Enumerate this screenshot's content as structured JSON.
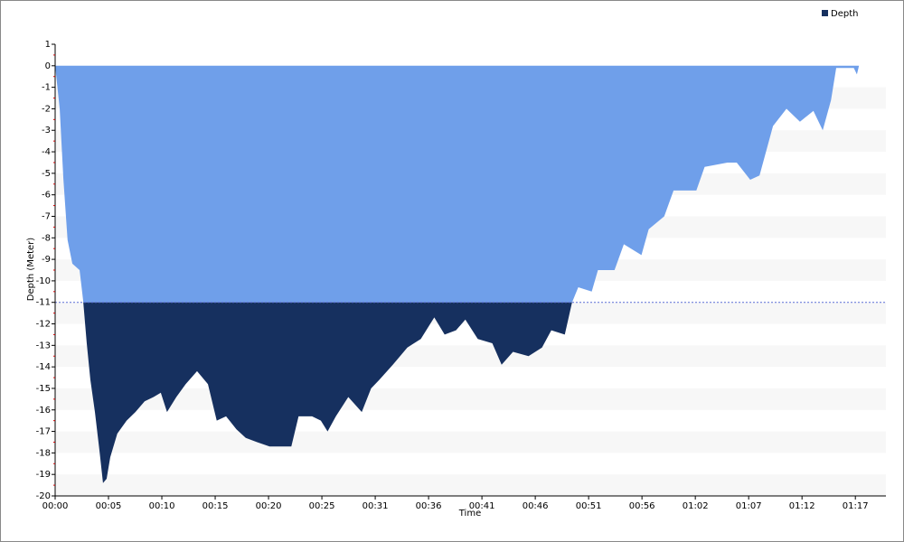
{
  "chart_data": {
    "type": "area",
    "y_label": "Depth (Meter)",
    "x_label": "Time",
    "xlim": [
      0,
      80.2
    ],
    "ylim": [
      -20,
      1
    ],
    "xticks": [
      {
        "value": 0,
        "label": "00:00"
      },
      {
        "value": 5.15,
        "label": "00:05"
      },
      {
        "value": 10.3,
        "label": "00:10"
      },
      {
        "value": 15.45,
        "label": "00:15"
      },
      {
        "value": 20.6,
        "label": "00:20"
      },
      {
        "value": 25.75,
        "label": "00:25"
      },
      {
        "value": 30.9,
        "label": "00:31"
      },
      {
        "value": 36.05,
        "label": "00:36"
      },
      {
        "value": 41.2,
        "label": "00:41"
      },
      {
        "value": 46.35,
        "label": "00:46"
      },
      {
        "value": 51.5,
        "label": "00:51"
      },
      {
        "value": 56.65,
        "label": "00:56"
      },
      {
        "value": 61.8,
        "label": "01:02"
      },
      {
        "value": 66.95,
        "label": "01:07"
      },
      {
        "value": 72.1,
        "label": "01:12"
      },
      {
        "value": 77.25,
        "label": "01:17"
      }
    ],
    "yticks": [
      1,
      0,
      -1,
      -2,
      -3,
      -4,
      -5,
      -6,
      -7,
      -8,
      -9,
      -10,
      -11,
      -12,
      -13,
      -14,
      -15,
      -16,
      -17,
      -18,
      -19,
      -20
    ],
    "threshold": -11,
    "threshold_color": "#5a6fd6",
    "upper_color": "#6f9fea",
    "legend": "top-right",
    "x": [
      0,
      0.44,
      0.8,
      1.2,
      1.66,
      2.36,
      2.7,
      3.05,
      3.4,
      3.84,
      4.28,
      4.62,
      4.97,
      5.32,
      6.0,
      6.9,
      7.75,
      8.64,
      9.5,
      10.2,
      10.8,
      11.7,
      12.6,
      13.7,
      14.75,
      15.6,
      16.5,
      17.5,
      18.4,
      19.5,
      20.7,
      21.9,
      22.8,
      23.5,
      24.8,
      25.65,
      26.3,
      27.1,
      28.3,
      29.6,
      30.5,
      31.3,
      32.6,
      34.0,
      35.3,
      36.6,
      37.6,
      38.7,
      39.6,
      40.8,
      42.2,
      43.1,
      44.2,
      45.7,
      47.0,
      47.9,
      49.2,
      49.9,
      50.5,
      51.8,
      52.4,
      54.0,
      54.9,
      56.6,
      57.3,
      58.8,
      59.7,
      61.9,
      62.7,
      64.9,
      65.8,
      67.1,
      68.0,
      69.3,
      70.6,
      71.9,
      73.2,
      74.1,
      74.9,
      75.4,
      77.1,
      77.4,
      77.6
    ],
    "series": [
      {
        "name": "Depth",
        "color": "#16305f",
        "values": [
          0,
          -2,
          -5.3,
          -8.1,
          -9.2,
          -9.5,
          -10.9,
          -12.9,
          -14.6,
          -16.1,
          -17.9,
          -19.4,
          -19.2,
          -18.2,
          -17.1,
          -16.5,
          -16.1,
          -15.6,
          -15.4,
          -15.2,
          -16.1,
          -15.4,
          -14.8,
          -14.2,
          -14.8,
          -16.5,
          -16.3,
          -16.9,
          -17.3,
          -17.5,
          -17.7,
          -17.7,
          -17.7,
          -16.3,
          -16.3,
          -16.5,
          -17.0,
          -16.3,
          -15.4,
          -16.1,
          -15.0,
          -14.6,
          -13.9,
          -13.1,
          -12.7,
          -11.7,
          -12.5,
          -12.3,
          -11.8,
          -12.7,
          -12.9,
          -13.9,
          -13.3,
          -13.5,
          -13.1,
          -12.3,
          -12.5,
          -11.0,
          -10.3,
          -10.5,
          -9.5,
          -9.5,
          -8.3,
          -8.8,
          -7.6,
          -7.0,
          -5.8,
          -5.8,
          -4.7,
          -4.5,
          -4.5,
          -5.3,
          -5.1,
          -2.8,
          -2.0,
          -2.6,
          -2.1,
          -3.0,
          -1.6,
          -0.1,
          -0.1,
          -0.4,
          0
        ]
      }
    ]
  }
}
